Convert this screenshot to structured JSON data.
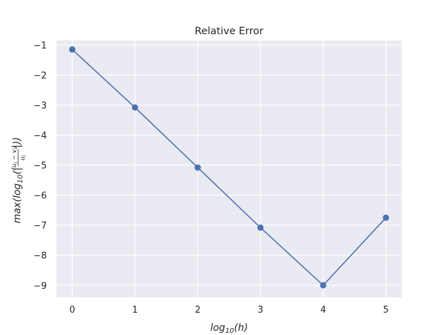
{
  "chart_data": {
    "type": "line",
    "title": "Relative Error",
    "xlabel": "log10(h)",
    "xlabel_parts": {
      "base": "log",
      "sub": "10",
      "arg": "(h)"
    },
    "ylabel": "max(log10(|(ui − vi)/ui|))",
    "x": [
      0,
      1,
      2,
      3,
      4,
      5
    ],
    "series": [
      {
        "values": [
          -1.15,
          -3.08,
          -5.08,
          -7.08,
          -9.0,
          -6.75
        ]
      }
    ],
    "xlim": [
      -0.25,
      5.25
    ],
    "ylim": [
      -9.4,
      -0.85
    ],
    "xticks": [
      "0",
      "1",
      "2",
      "3",
      "4",
      "5"
    ],
    "yticks": [
      "−1",
      "−2",
      "−3",
      "−4",
      "−5",
      "−6",
      "−7",
      "−8",
      "−9"
    ],
    "grid": true,
    "background": "#eaeaf2",
    "line_color": "#4c72b0",
    "markers": "circle"
  }
}
